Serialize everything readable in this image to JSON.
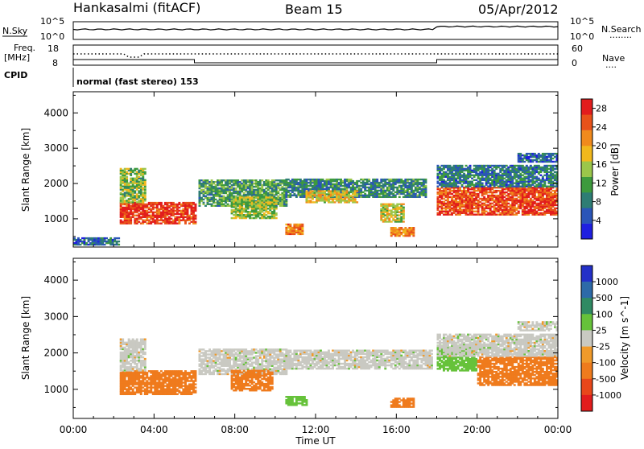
{
  "header": {
    "station": "Hankasalmi (fitACF)",
    "beam": "Beam 15",
    "date": "05/Apr/2012"
  },
  "strip": {
    "nsky_label": "N.Sky",
    "nsearch_label": "N.Search",
    "nsearch_legend": "........",
    "noise_ticks": [
      "10^5",
      "10^0"
    ],
    "freq_label": "Freq.",
    "freq_unit": "[MHz]",
    "freq_ticks": [
      "18",
      "8"
    ],
    "nave_label": "Nave",
    "nave_legend": "....",
    "nave_ticks": [
      "60",
      "0"
    ],
    "cpid_label": "CPID",
    "cpid_text": "normal (fast stereo) 153"
  },
  "colors": {
    "power_scale": [
      "#1f1fe0",
      "#2a55b8",
      "#2e7d74",
      "#3d9a3d",
      "#9bc64a",
      "#f1b81d",
      "#f08a1d",
      "#e8521a",
      "#e21d1d"
    ],
    "velocity_scale": [
      "#2330c8",
      "#2d6aa8",
      "#2f8a63",
      "#66c23a",
      "#c9c9c2",
      "#f09a2a",
      "#ef7b1d",
      "#e8471a",
      "#e21d1d"
    ]
  },
  "chart_data": [
    {
      "type": "heatmap",
      "name": "power",
      "title": "Beam 15",
      "xlabel": "Time UT",
      "ylabel": "Slant Range [km]",
      "x_ticks": [
        "00:00",
        "04:00",
        "08:00",
        "12:00",
        "16:00",
        "20:00",
        "00:00"
      ],
      "xlim_hours": [
        0,
        24
      ],
      "y_ticks": [
        1000,
        2000,
        3000,
        4000
      ],
      "ylim": [
        200,
        4600
      ],
      "colorbar_label": "Power [dB]",
      "colorbar_ticks": [
        4,
        8,
        12,
        16,
        20,
        24,
        28
      ],
      "colorbar_range": [
        0,
        30
      ],
      "regions": [
        {
          "t0": 2.3,
          "t1": 6.0,
          "r0": 850,
          "r1": 1450,
          "value": 27
        },
        {
          "t0": 2.3,
          "t1": 3.6,
          "r0": 1450,
          "r1": 2400,
          "value": 14
        },
        {
          "t0": 6.2,
          "t1": 10.5,
          "r0": 1350,
          "r1": 2100,
          "value": 11
        },
        {
          "t0": 7.8,
          "t1": 10.0,
          "r0": 1000,
          "r1": 1600,
          "value": 15
        },
        {
          "t0": 10.5,
          "t1": 17.5,
          "r0": 1600,
          "r1": 2100,
          "value": 9
        },
        {
          "t0": 11.5,
          "t1": 14.0,
          "r0": 1450,
          "r1": 1800,
          "value": 18
        },
        {
          "t0": 15.2,
          "t1": 16.4,
          "r0": 900,
          "r1": 1400,
          "value": 17
        },
        {
          "t0": 15.7,
          "t1": 16.9,
          "r0": 500,
          "r1": 750,
          "value": 22
        },
        {
          "t0": 10.5,
          "t1": 11.3,
          "r0": 550,
          "r1": 850,
          "value": 22
        },
        {
          "t0": 18.0,
          "t1": 24.0,
          "r0": 1100,
          "r1": 1900,
          "value": 26
        },
        {
          "t0": 18.0,
          "t1": 24.0,
          "r0": 1900,
          "r1": 2500,
          "value": 8
        },
        {
          "t0": 22.0,
          "t1": 24.0,
          "r0": 2600,
          "r1": 2850,
          "value": 6
        },
        {
          "t0": 0.0,
          "t1": 2.3,
          "r0": 250,
          "r1": 450,
          "value": 7
        }
      ]
    },
    {
      "type": "heatmap",
      "name": "velocity",
      "xlabel": "Time UT",
      "ylabel": "Slant Range [km]",
      "x_ticks": [
        "00:00",
        "04:00",
        "08:00",
        "12:00",
        "16:00",
        "20:00",
        "00:00"
      ],
      "xlim_hours": [
        0,
        24
      ],
      "y_ticks": [
        1000,
        2000,
        3000,
        4000
      ],
      "ylim": [
        200,
        4600
      ],
      "colorbar_label": "Velocity [m s^-1]",
      "colorbar_ticks": [
        "1000",
        "500",
        "100",
        "25",
        "-25",
        "-100",
        "-500",
        "-1000"
      ],
      "regions": [
        {
          "t0": 2.3,
          "t1": 6.0,
          "r0": 850,
          "r1": 1500,
          "value": -300
        },
        {
          "t0": 2.3,
          "t1": 3.6,
          "r0": 1500,
          "r1": 2400,
          "value": 0
        },
        {
          "t0": 6.2,
          "t1": 10.5,
          "r0": 1400,
          "r1": 2100,
          "value": 0
        },
        {
          "t0": 7.8,
          "t1": 9.8,
          "r0": 950,
          "r1": 1500,
          "value": -250
        },
        {
          "t0": 10.5,
          "t1": 17.8,
          "r0": 1550,
          "r1": 2050,
          "value": 0
        },
        {
          "t0": 15.7,
          "t1": 16.9,
          "r0": 500,
          "r1": 750,
          "value": -250
        },
        {
          "t0": 10.5,
          "t1": 11.5,
          "r0": 550,
          "r1": 800,
          "value": 60
        },
        {
          "t0": 18.0,
          "t1": 20.0,
          "r0": 1500,
          "r1": 2200,
          "value": 60
        },
        {
          "t0": 20.0,
          "t1": 24.0,
          "r0": 1100,
          "r1": 1900,
          "value": -350
        },
        {
          "t0": 18.0,
          "t1": 24.0,
          "r0": 1900,
          "r1": 2500,
          "value": 0
        },
        {
          "t0": 22.0,
          "t1": 24.0,
          "r0": 2600,
          "r1": 2850,
          "value": 0
        }
      ]
    }
  ]
}
